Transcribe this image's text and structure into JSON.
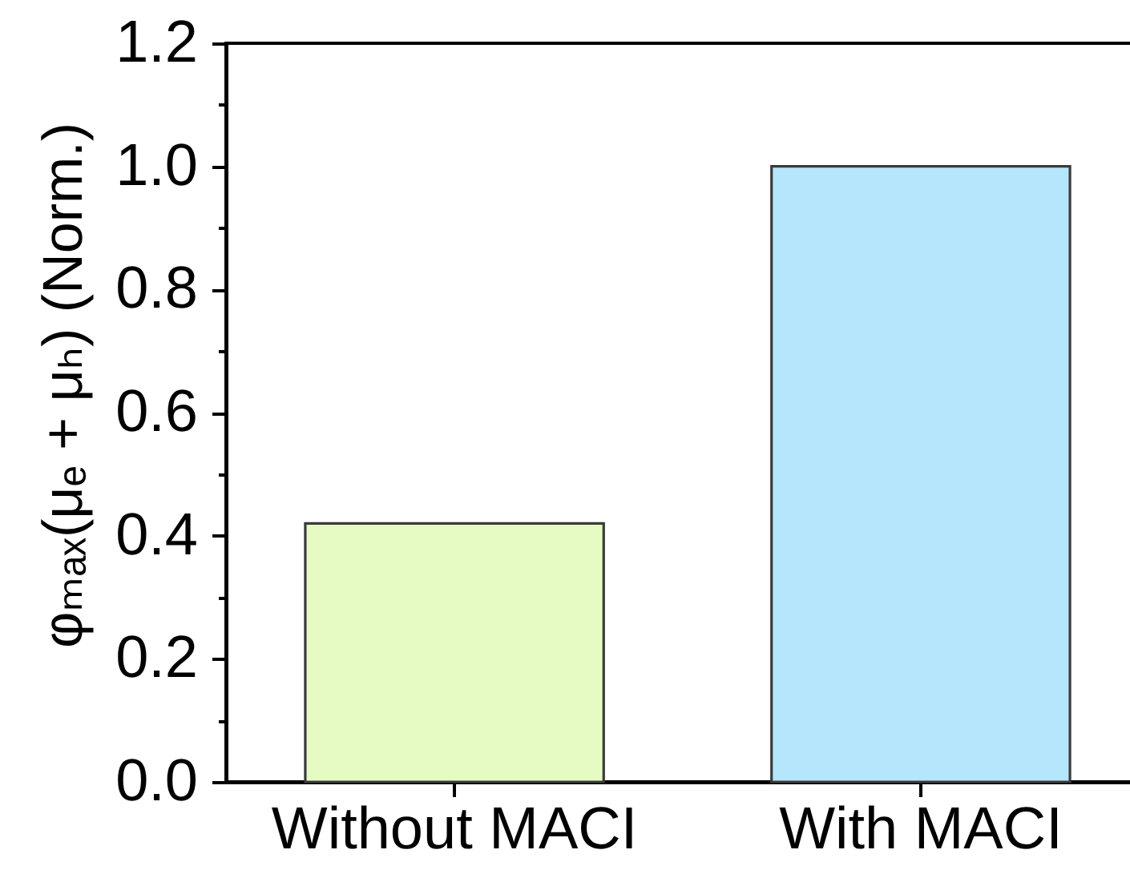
{
  "chart_data": {
    "type": "bar",
    "ylabel": "φₘₐₓ(μₑ + μₕ) (Norm.)",
    "categories": [
      "Without MACI",
      "With MACI"
    ],
    "values": [
      0.42,
      1.0
    ],
    "colors": [
      "#e5fbc3",
      "#b5e6fb"
    ],
    "ylim": [
      0,
      1.2
    ],
    "yticks": [
      {
        "value": 0,
        "label": "0.0"
      },
      {
        "value": 0.1,
        "label": null
      },
      0.2,
      {
        "value": 0.3,
        "label": null
      },
      0.4,
      {
        "value": 0.5,
        "label": null
      },
      0.6,
      {
        "value": 0.7,
        "label": null
      },
      0.8,
      {
        "value": 0.9,
        "label": null
      },
      {
        "value": 1,
        "label": "1.0"
      },
      {
        "value": 1.1,
        "label": null
      },
      1.2
    ]
  }
}
